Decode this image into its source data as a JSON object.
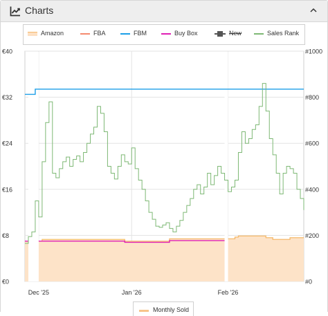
{
  "header": {
    "title": "Charts",
    "icon": "line-chart-icon",
    "toggle_icon": "chevron-up-icon"
  },
  "legend": {
    "items": [
      {
        "label": "Amazon",
        "color": "#f5b96b",
        "style": "band",
        "disabled": false
      },
      {
        "label": "FBA",
        "color": "#f58a6e",
        "style": "line",
        "disabled": false
      },
      {
        "label": "FBM",
        "color": "#1a9ee8",
        "style": "line",
        "disabled": false
      },
      {
        "label": "Buy Box",
        "color": "#e01fb5",
        "style": "line",
        "disabled": false
      },
      {
        "label": "New",
        "color": "#555555",
        "style": "square",
        "disabled": true
      },
      {
        "label": "Sales Rank",
        "color": "#7db874",
        "style": "line",
        "disabled": false
      }
    ],
    "monthly_sold": {
      "label": "Monthly Sold",
      "color": "#f7c48a"
    }
  },
  "chart_data": {
    "type": "line",
    "x_range": [
      "2025-12-12",
      "2026-03-03"
    ],
    "x_ticks": [
      {
        "label": "Dec '25",
        "date": "2025-12-16"
      },
      {
        "label": "Jan '26",
        "date": "2026-01-12"
      },
      {
        "label": "Feb '26",
        "date": "2026-02-09"
      }
    ],
    "y_left": {
      "range": [
        0,
        40
      ],
      "ticks": [
        "€0",
        "€8",
        "€16",
        "€24",
        "€32",
        "€40"
      ]
    },
    "y_right": {
      "range": [
        0,
        1000
      ],
      "ticks": [
        "#0",
        "#200",
        "#400",
        "#600",
        "#800",
        "#1000"
      ]
    },
    "grid": true,
    "series": [
      {
        "name": "Amazon",
        "axis": "left",
        "type": "area",
        "color": "#f5b96b",
        "points": [
          [
            "2025-12-12",
            7.0
          ],
          [
            "2025-12-13",
            7.0
          ],
          [
            "2025-12-16",
            7.0
          ],
          [
            "2025-12-17",
            7.3
          ],
          [
            "2026-01-09",
            7.3
          ],
          [
            "2026-01-10",
            7.0
          ],
          [
            "2026-01-22",
            7.0
          ],
          [
            "2026-01-23",
            7.4
          ],
          [
            "2026-02-10",
            7.4
          ],
          [
            "2026-02-11",
            7.7
          ],
          [
            "2026-02-12",
            7.9
          ],
          [
            "2026-02-19",
            7.9
          ],
          [
            "2026-02-20",
            7.6
          ],
          [
            "2026-02-22",
            7.3
          ],
          [
            "2026-02-26",
            7.3
          ],
          [
            "2026-02-27",
            7.6
          ],
          [
            "2026-03-03",
            7.6
          ]
        ],
        "gaps": [
          [
            "2025-12-13",
            "2025-12-16"
          ],
          [
            "2026-02-08",
            "2026-02-09"
          ]
        ]
      },
      {
        "name": "Buy Box",
        "axis": "left",
        "type": "step",
        "color": "#e01fb5",
        "points": [
          [
            "2025-12-12",
            7.0
          ],
          [
            "2025-12-13",
            7.0
          ],
          [
            "2025-12-16",
            7.0
          ],
          [
            "2025-12-17",
            7.0
          ],
          [
            "2026-01-09",
            7.0
          ],
          [
            "2026-01-10",
            6.8
          ],
          [
            "2026-01-22",
            6.8
          ],
          [
            "2026-01-23",
            7.1
          ],
          [
            "2026-02-08",
            7.1
          ]
        ],
        "gaps": [
          [
            "2025-12-13",
            "2025-12-16"
          ]
        ]
      },
      {
        "name": "FBM",
        "axis": "left",
        "type": "step",
        "color": "#1a9ee8",
        "points": [
          [
            "2025-12-12",
            32.5
          ],
          [
            "2025-12-14",
            32.5
          ],
          [
            "2025-12-15",
            33.4
          ],
          [
            "2026-03-03",
            33.4
          ]
        ]
      },
      {
        "name": "Sales Rank",
        "axis": "right",
        "type": "step",
        "color": "#7db874",
        "points": [
          [
            "2025-12-12",
            165
          ],
          [
            "2025-12-13",
            195
          ],
          [
            "2025-12-14",
            215
          ],
          [
            "2025-12-15",
            350
          ],
          [
            "2025-12-16",
            280
          ],
          [
            "2025-12-17",
            520
          ],
          [
            "2025-12-18",
            690
          ],
          [
            "2025-12-19",
            780
          ],
          [
            "2025-12-20",
            470
          ],
          [
            "2025-12-21",
            450
          ],
          [
            "2025-12-22",
            490
          ],
          [
            "2025-12-23",
            520
          ],
          [
            "2025-12-24",
            540
          ],
          [
            "2025-12-25",
            500
          ],
          [
            "2025-12-26",
            530
          ],
          [
            "2025-12-27",
            545
          ],
          [
            "2025-12-28",
            520
          ],
          [
            "2025-12-29",
            560
          ],
          [
            "2025-12-30",
            600
          ],
          [
            "2025-12-31",
            640
          ],
          [
            "2026-01-01",
            670
          ],
          [
            "2026-01-02",
            760
          ],
          [
            "2026-01-03",
            730
          ],
          [
            "2026-01-04",
            650
          ],
          [
            "2026-01-05",
            500
          ],
          [
            "2026-01-06",
            470
          ],
          [
            "2026-01-07",
            445
          ],
          [
            "2026-01-08",
            500
          ],
          [
            "2026-01-09",
            550
          ],
          [
            "2026-01-10",
            520
          ],
          [
            "2026-01-11",
            510
          ],
          [
            "2026-01-12",
            580
          ],
          [
            "2026-01-13",
            490
          ],
          [
            "2026-01-14",
            440
          ],
          [
            "2026-01-15",
            400
          ],
          [
            "2026-01-16",
            350
          ],
          [
            "2026-01-17",
            300
          ],
          [
            "2026-01-18",
            270
          ],
          [
            "2026-01-19",
            240
          ],
          [
            "2026-01-20",
            235
          ],
          [
            "2026-01-21",
            245
          ],
          [
            "2026-01-22",
            255
          ],
          [
            "2026-01-23",
            230
          ],
          [
            "2026-01-24",
            215
          ],
          [
            "2026-01-25",
            240
          ],
          [
            "2026-01-26",
            265
          ],
          [
            "2026-01-27",
            300
          ],
          [
            "2026-01-28",
            330
          ],
          [
            "2026-01-29",
            360
          ],
          [
            "2026-01-30",
            400
          ],
          [
            "2026-01-31",
            420
          ],
          [
            "2026-02-01",
            380
          ],
          [
            "2026-02-02",
            410
          ],
          [
            "2026-02-03",
            470
          ],
          [
            "2026-02-04",
            420
          ],
          [
            "2026-02-05",
            460
          ],
          [
            "2026-02-06",
            500
          ],
          [
            "2026-02-07",
            470
          ],
          [
            "2026-02-08",
            440
          ],
          [
            "2026-02-09",
            390
          ],
          [
            "2026-02-10",
            410
          ],
          [
            "2026-02-11",
            440
          ],
          [
            "2026-02-12",
            560
          ],
          [
            "2026-02-13",
            650
          ],
          [
            "2026-02-14",
            600
          ],
          [
            "2026-02-15",
            620
          ],
          [
            "2026-02-16",
            660
          ],
          [
            "2026-02-17",
            680
          ],
          [
            "2026-02-18",
            760
          ],
          [
            "2026-02-19",
            860
          ],
          [
            "2026-02-20",
            740
          ],
          [
            "2026-02-21",
            620
          ],
          [
            "2026-02-22",
            550
          ],
          [
            "2026-02-23",
            470
          ],
          [
            "2026-02-24",
            380
          ],
          [
            "2026-02-25",
            470
          ],
          [
            "2026-02-26",
            500
          ],
          [
            "2026-02-27",
            490
          ],
          [
            "2026-02-28",
            470
          ],
          [
            "2026-03-01",
            400
          ],
          [
            "2026-03-02",
            360
          ],
          [
            "2026-03-03",
            310
          ]
        ]
      }
    ],
    "monthly_sold": {
      "name": "Monthly Sold",
      "color": "#f7c48a"
    }
  }
}
